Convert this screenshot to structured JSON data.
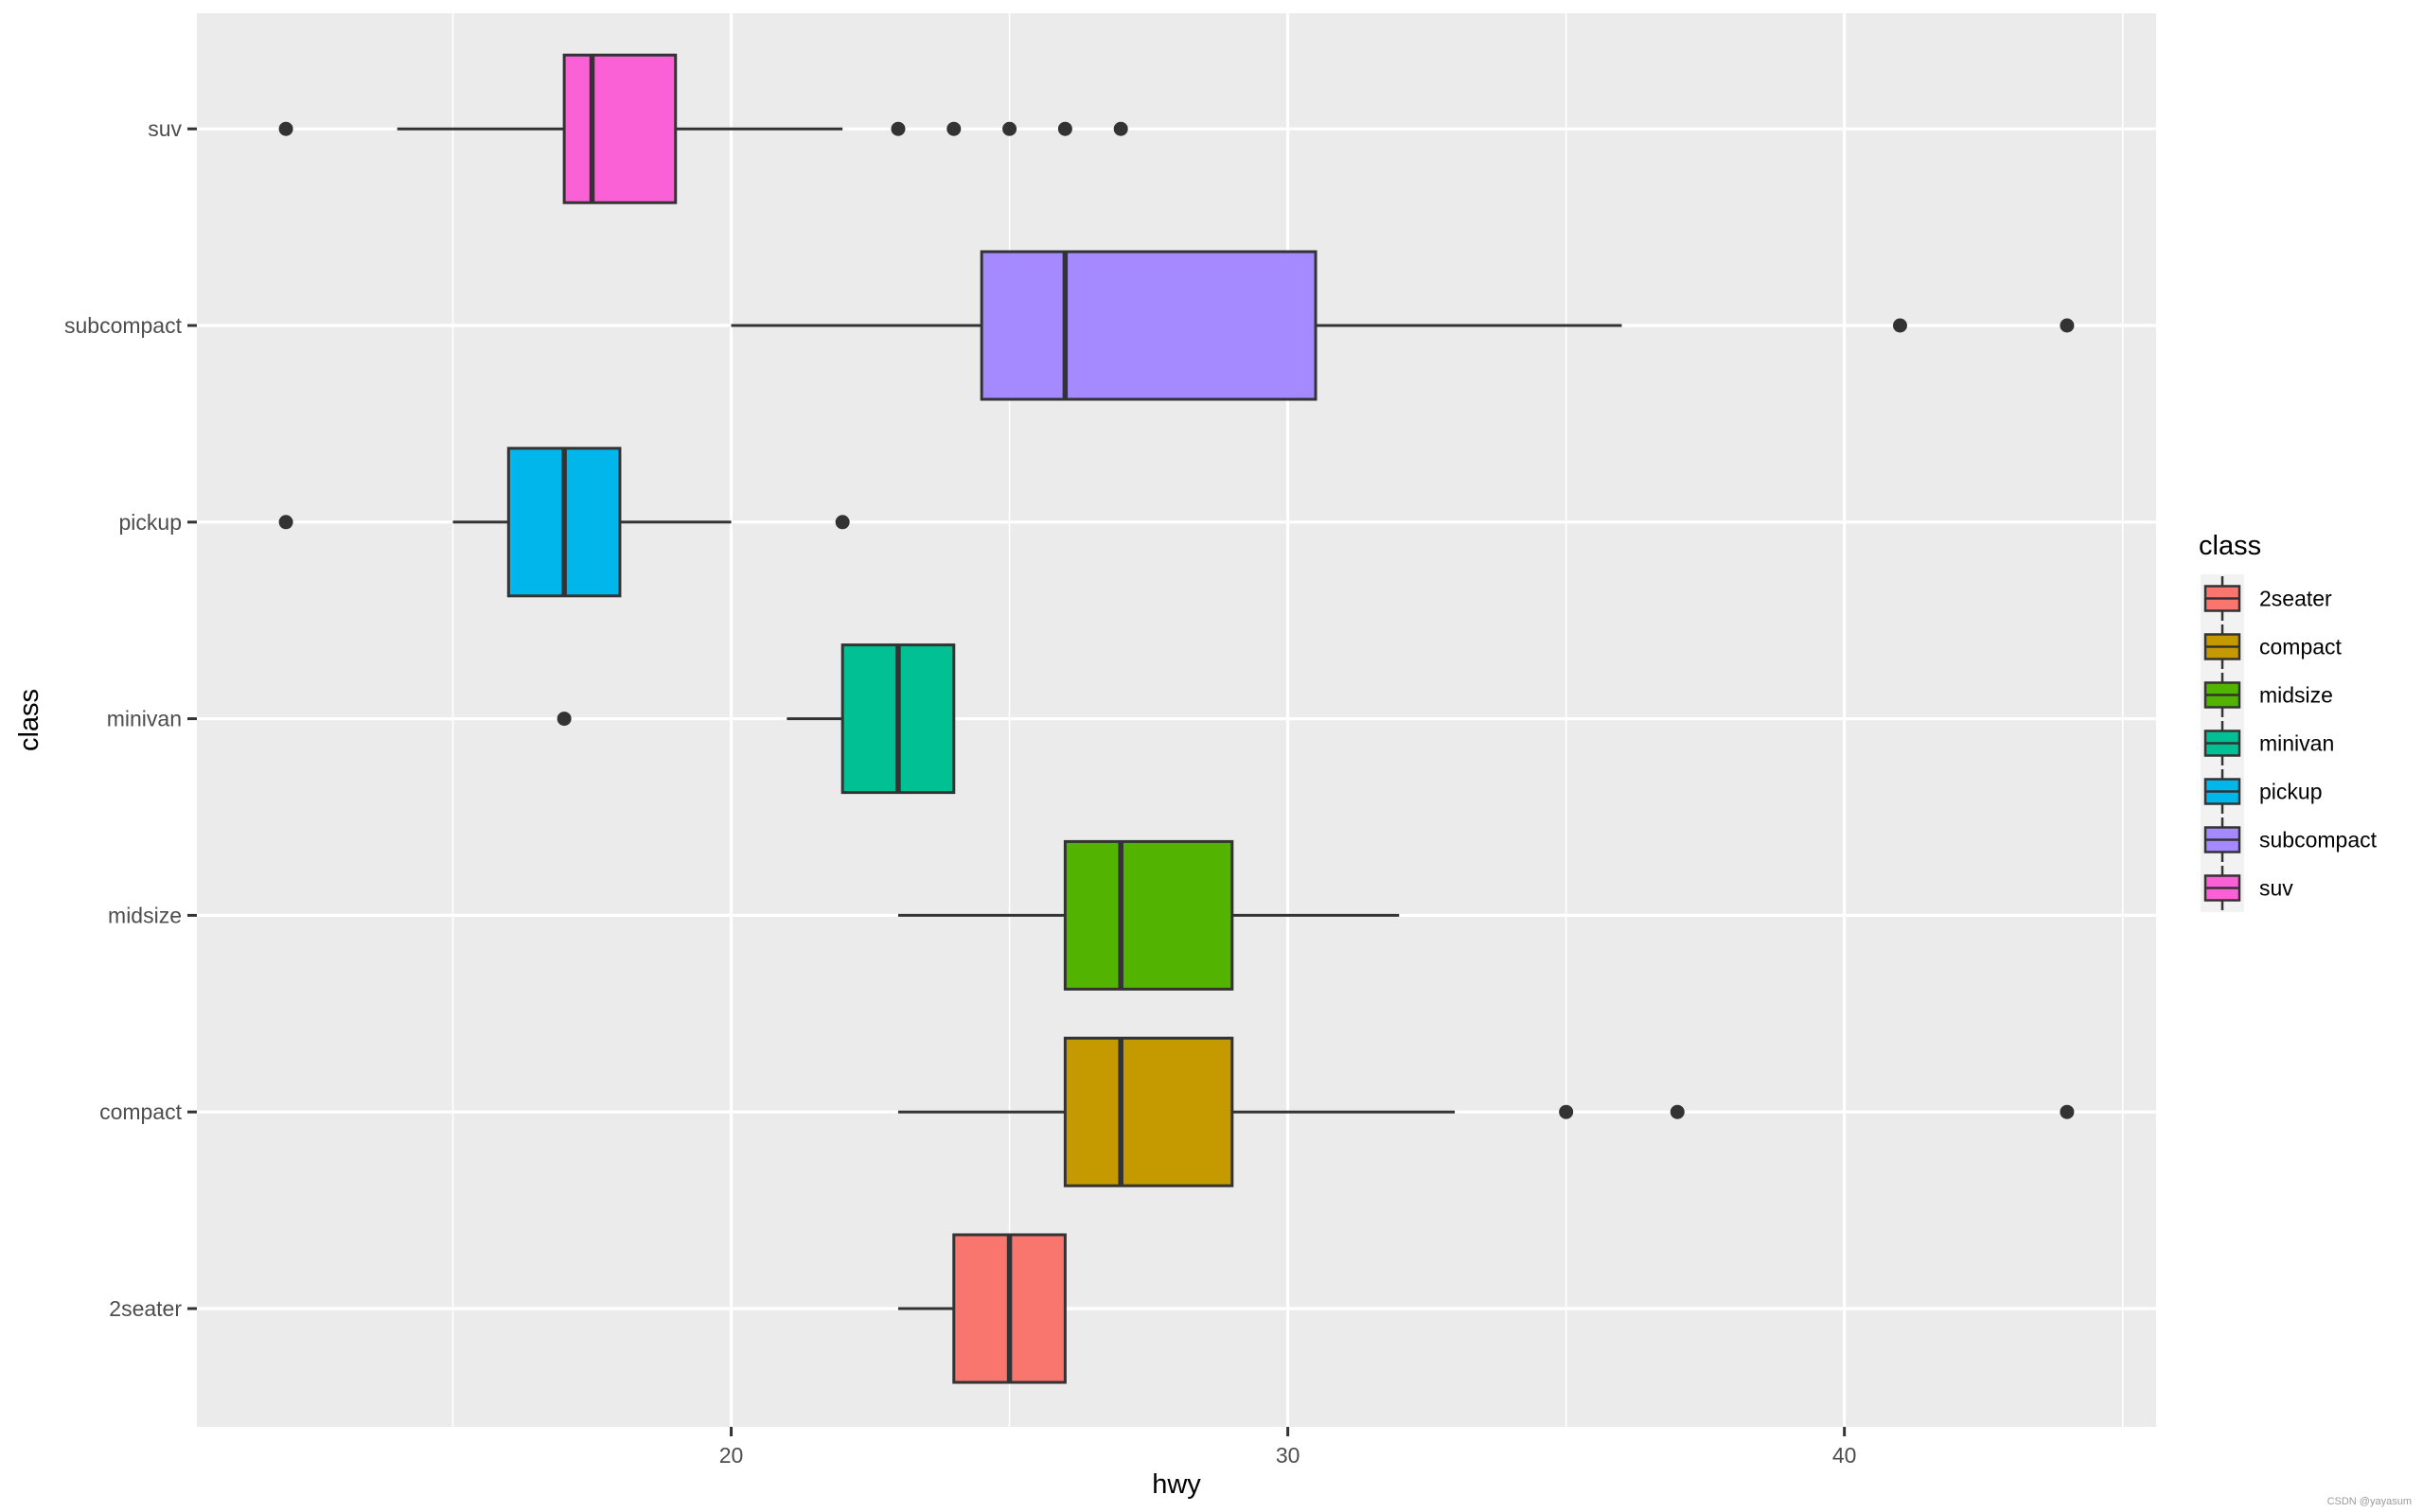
{
  "chart_data": {
    "type": "boxplot",
    "orientation": "horizontal",
    "xlabel": "hwy",
    "ylabel": "class",
    "xlim": [
      10.4,
      45.6
    ],
    "x_ticks": [
      20,
      30,
      40
    ],
    "x_minor_ticks": [
      15,
      25,
      35,
      45
    ],
    "grid": true,
    "legend": {
      "title": "class",
      "position": "right"
    },
    "categories": [
      "2seater",
      "compact",
      "midsize",
      "minivan",
      "pickup",
      "subcompact",
      "suv"
    ],
    "series": [
      {
        "name": "2seater",
        "color": "#F8766D",
        "whisker_low": 23,
        "q1": 24,
        "median": 25,
        "q3": 26,
        "whisker_high": 26,
        "outliers": []
      },
      {
        "name": "compact",
        "color": "#C49A00",
        "whisker_low": 23,
        "q1": 26,
        "median": 27,
        "q3": 29,
        "whisker_high": 33,
        "outliers": [
          35,
          37,
          44
        ]
      },
      {
        "name": "midsize",
        "color": "#53B400",
        "whisker_low": 23,
        "q1": 26,
        "median": 27,
        "q3": 29,
        "whisker_high": 32,
        "outliers": []
      },
      {
        "name": "minivan",
        "color": "#00C094",
        "whisker_low": 21,
        "q1": 22,
        "median": 23,
        "q3": 24,
        "whisker_high": 24,
        "outliers": [
          17
        ]
      },
      {
        "name": "pickup",
        "color": "#00B6EB",
        "whisker_low": 15,
        "q1": 16,
        "median": 17,
        "q3": 18,
        "whisker_high": 20,
        "outliers": [
          12,
          22
        ]
      },
      {
        "name": "subcompact",
        "color": "#A58AFF",
        "whisker_low": 20,
        "q1": 24.5,
        "median": 26,
        "q3": 30.5,
        "whisker_high": 36,
        "outliers": [
          41,
          44
        ]
      },
      {
        "name": "suv",
        "color": "#FB61D7",
        "whisker_low": 14,
        "q1": 17,
        "median": 17.5,
        "q3": 19,
        "whisker_high": 22,
        "outliers": [
          12,
          23,
          24,
          25,
          26,
          27
        ]
      }
    ]
  },
  "watermark": "CSDN @yayasum"
}
